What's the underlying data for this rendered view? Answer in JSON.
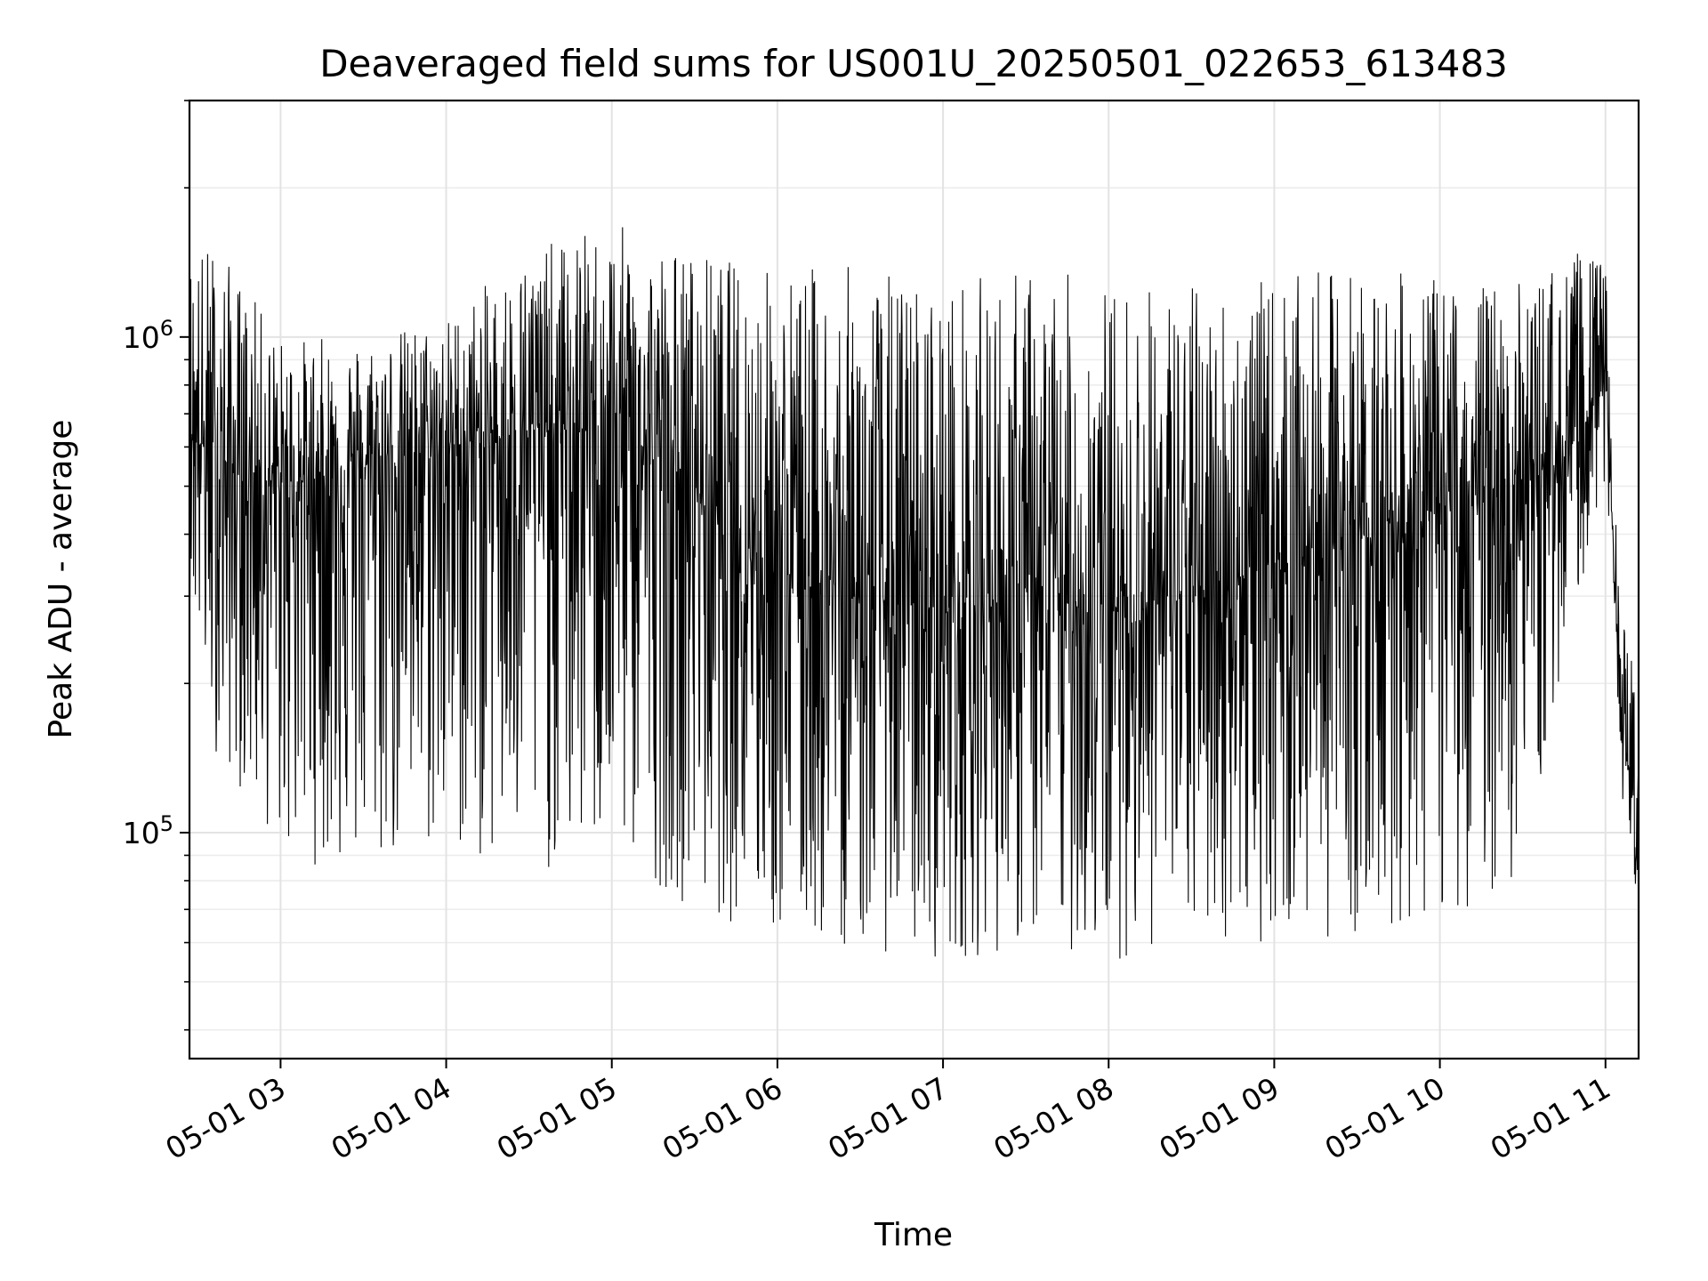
{
  "chart_data": {
    "type": "line",
    "title": "Deaveraged field sums for US001U_20250501_022653_613483",
    "xlabel": "Time",
    "ylabel": "Peak ADU - average",
    "x_axis": {
      "kind": "time",
      "range": [
        "2025-05-01 02:27",
        "2025-05-01 11:12"
      ],
      "ticks": [
        "2025-05-01 03:00",
        "2025-05-01 04:00",
        "2025-05-01 05:00",
        "2025-05-01 06:00",
        "2025-05-01 07:00",
        "2025-05-01 08:00",
        "2025-05-01 09:00",
        "2025-05-01 10:00",
        "2025-05-01 11:00"
      ],
      "tick_labels": [
        "05-01 03",
        "05-01 04",
        "05-01 05",
        "05-01 06",
        "05-01 07",
        "05-01 08",
        "05-01 09",
        "05-01 10",
        "05-01 11"
      ],
      "tick_rotation": 30
    },
    "y_axis": {
      "scale": "log",
      "range": [
        35000,
        3000000
      ],
      "ticks": [
        100000,
        1000000
      ],
      "tick_labels": [
        {
          "base": "10",
          "exp": "5"
        },
        {
          "base": "10",
          "exp": "6"
        }
      ]
    },
    "grid": true,
    "line_color": "#000000",
    "envelope": {
      "x": [
        "2025-05-01 02:27",
        "2025-05-01 02:35",
        "2025-05-01 03:00",
        "2025-05-01 03:30",
        "2025-05-01 04:00",
        "2025-05-01 04:30",
        "2025-05-01 05:00",
        "2025-05-01 05:30",
        "2025-05-01 06:00",
        "2025-05-01 06:30",
        "2025-05-01 07:00",
        "2025-05-01 07:30",
        "2025-05-01 08:00",
        "2025-05-01 08:30",
        "2025-05-01 09:00",
        "2025-05-01 09:30",
        "2025-05-01 10:00",
        "2025-05-01 10:30",
        "2025-05-01 10:50",
        "2025-05-01 11:00",
        "2025-05-01 11:05",
        "2025-05-01 11:12"
      ],
      "peak": [
        1500000,
        1600000,
        1000000,
        1000000,
        1100000,
        1500000,
        1700000,
        1500000,
        1400000,
        1400000,
        1300000,
        1400000,
        1300000,
        1300000,
        1300000,
        1400000,
        1300000,
        1300000,
        1500000,
        1400000,
        300000,
        200000
      ],
      "trough": [
        300000,
        150000,
        90000,
        80000,
        90000,
        80000,
        90000,
        70000,
        60000,
        58000,
        55000,
        58000,
        55000,
        60000,
        60000,
        62000,
        65000,
        80000,
        300000,
        500000,
        130000,
        70000
      ],
      "typical": [
        700000,
        550000,
        500000,
        550000,
        600000,
        650000,
        650000,
        500000,
        350000,
        300000,
        280000,
        300000,
        280000,
        300000,
        350000,
        400000,
        450000,
        500000,
        600000,
        900000,
        180000,
        100000
      ]
    }
  }
}
